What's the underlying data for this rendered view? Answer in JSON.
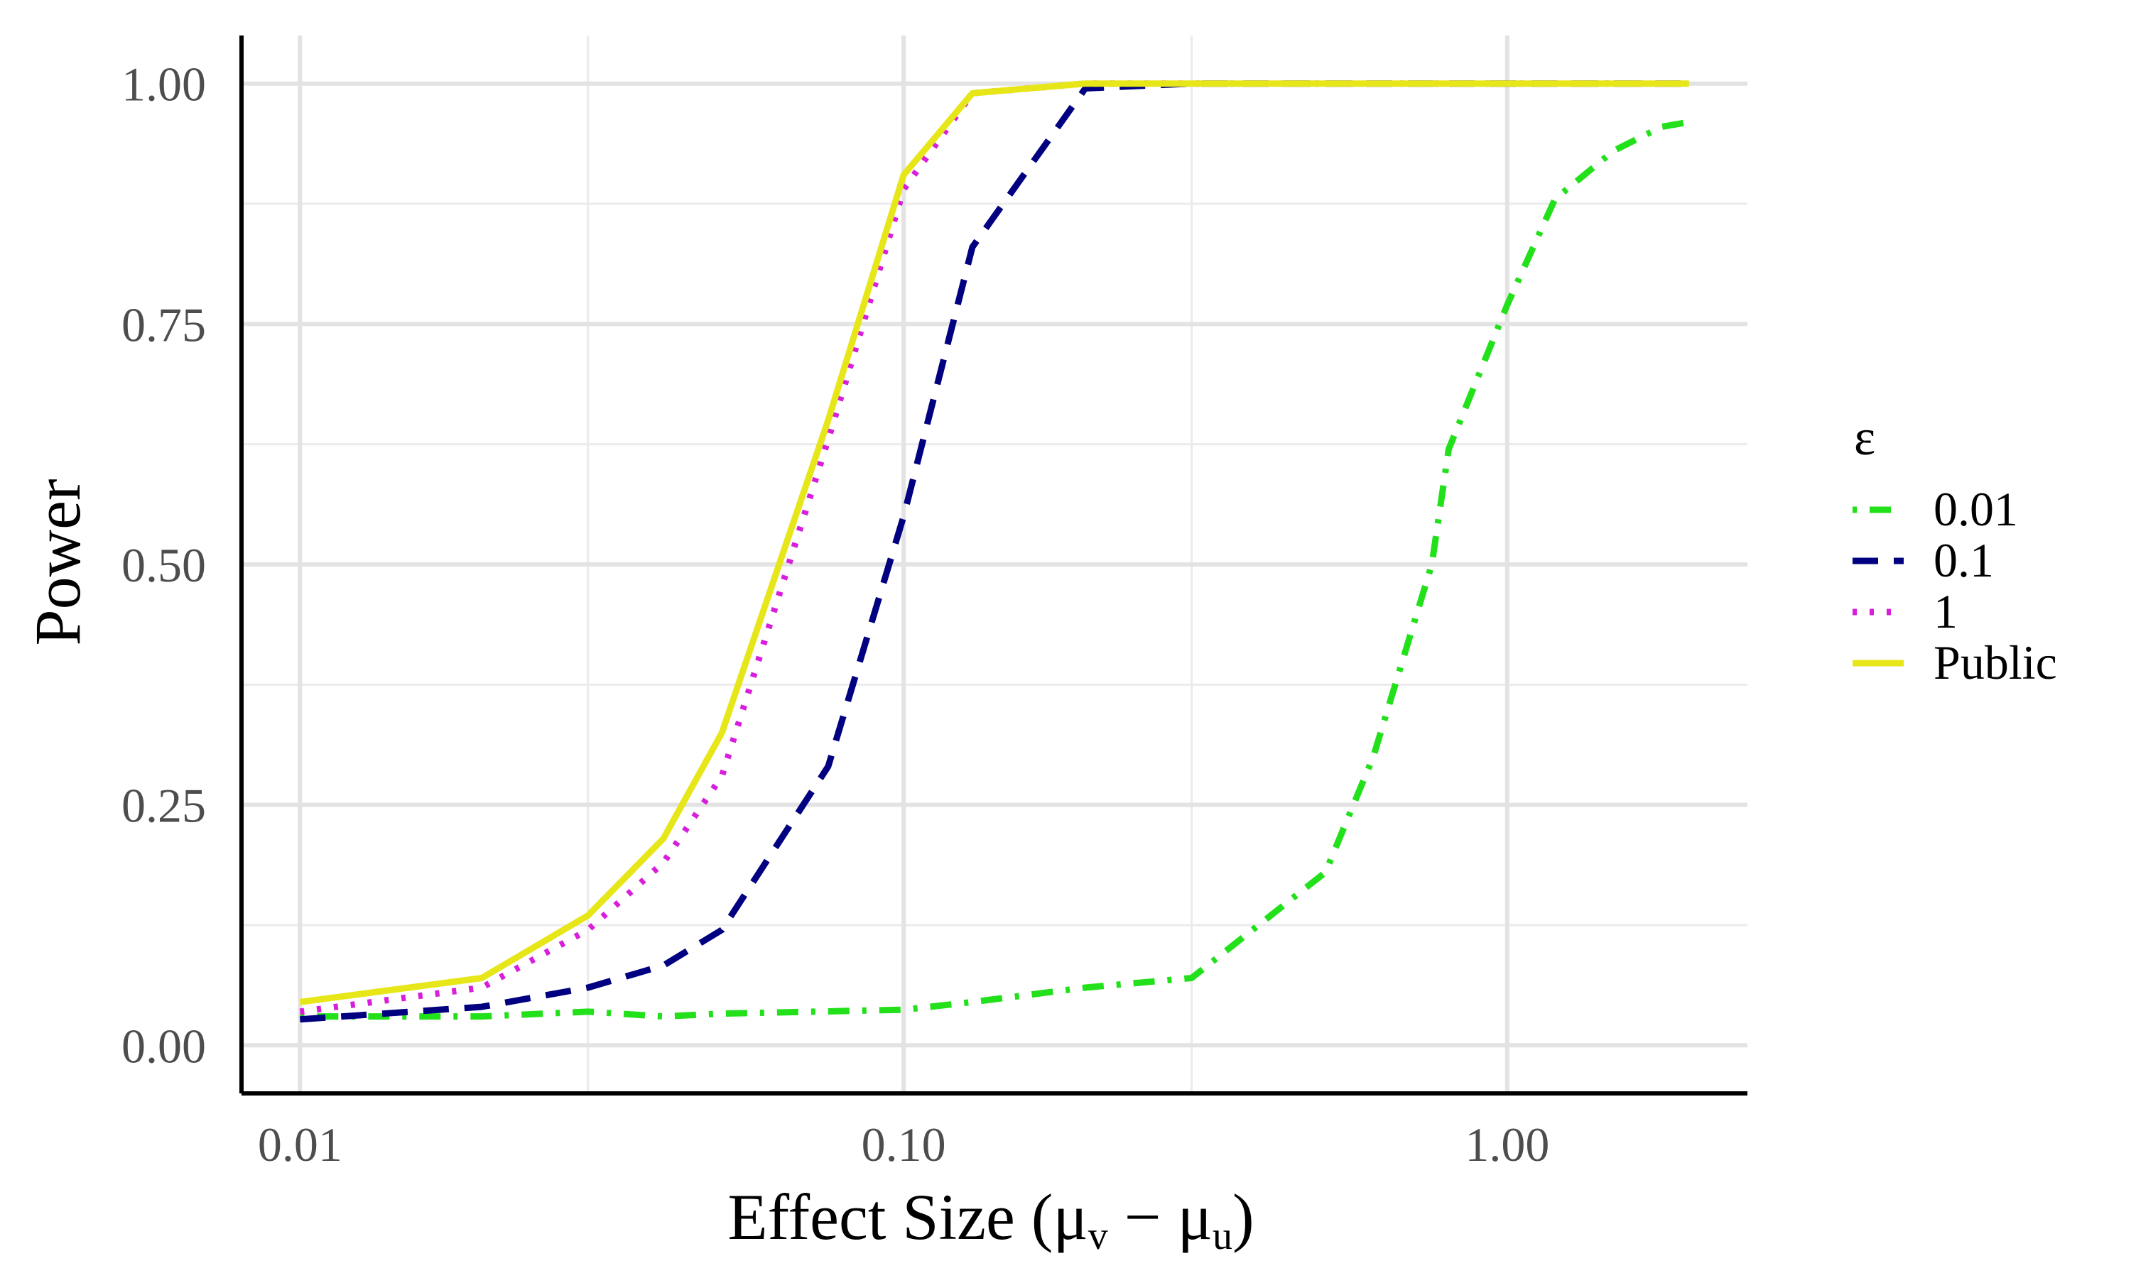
{
  "chart_data": {
    "type": "line",
    "xlabel_parts": {
      "prefix": "Effect Size (",
      "mu1": "μ",
      "sub1": "v",
      "minus": " − ",
      "mu2": "μ",
      "sub2": "u",
      "suffix": ")"
    },
    "ylabel": "Power",
    "x_scale": "log10",
    "xlim": [
      0.008,
      2.5
    ],
    "ylim": [
      -0.05,
      1.05
    ],
    "x_ticks": [
      {
        "value": 0.01,
        "label": "0.01"
      },
      {
        "value": 0.1,
        "label": "0.10"
      },
      {
        "value": 1.0,
        "label": "1.00"
      }
    ],
    "y_ticks": [
      {
        "value": 0.0,
        "label": "0.00"
      },
      {
        "value": 0.25,
        "label": "0.25"
      },
      {
        "value": 0.5,
        "label": "0.50"
      },
      {
        "value": 0.75,
        "label": "0.75"
      },
      {
        "value": 1.0,
        "label": "1.00"
      }
    ],
    "grid": true,
    "legend": {
      "title": "ε",
      "placement": "right"
    },
    "series": [
      {
        "name": "0.01",
        "color": "#22e01a",
        "dash": "dotdash",
        "x": [
          0.01,
          0.02,
          0.03,
          0.04,
          0.05,
          0.1,
          0.13,
          0.2,
          0.3,
          0.5,
          0.6,
          0.75,
          0.8,
          1.0,
          1.2,
          1.5,
          1.8,
          2.0
        ],
        "y": [
          0.03,
          0.03,
          0.035,
          0.03,
          0.033,
          0.037,
          0.045,
          0.06,
          0.07,
          0.18,
          0.3,
          0.5,
          0.62,
          0.77,
          0.88,
          0.93,
          0.955,
          0.96
        ]
      },
      {
        "name": "0.1",
        "color": "#000080",
        "dash": "dashed",
        "x": [
          0.01,
          0.02,
          0.03,
          0.04,
          0.05,
          0.075,
          0.1,
          0.13,
          0.2,
          0.3,
          0.5,
          1.0,
          2.0
        ],
        "y": [
          0.027,
          0.04,
          0.06,
          0.083,
          0.12,
          0.29,
          0.55,
          0.83,
          0.995,
          1.0,
          1.0,
          1.0,
          1.0
        ]
      },
      {
        "name": "1",
        "color": "#d81ddb",
        "dash": "dotted",
        "x": [
          0.01,
          0.02,
          0.03,
          0.04,
          0.05,
          0.075,
          0.1,
          0.13,
          0.2,
          0.3,
          0.5,
          1.0,
          2.0
        ],
        "y": [
          0.035,
          0.06,
          0.12,
          0.19,
          0.28,
          0.63,
          0.89,
          0.99,
          1.0,
          1.0,
          1.0,
          1.0,
          1.0
        ]
      },
      {
        "name": "Public",
        "color": "#e6e619",
        "dash": "solid",
        "x": [
          0.01,
          0.02,
          0.03,
          0.04,
          0.05,
          0.075,
          0.1,
          0.13,
          0.2,
          0.3,
          0.5,
          1.0,
          2.0
        ],
        "y": [
          0.045,
          0.07,
          0.135,
          0.215,
          0.325,
          0.65,
          0.905,
          0.99,
          1.0,
          1.0,
          1.0,
          1.0,
          1.0
        ]
      }
    ]
  }
}
